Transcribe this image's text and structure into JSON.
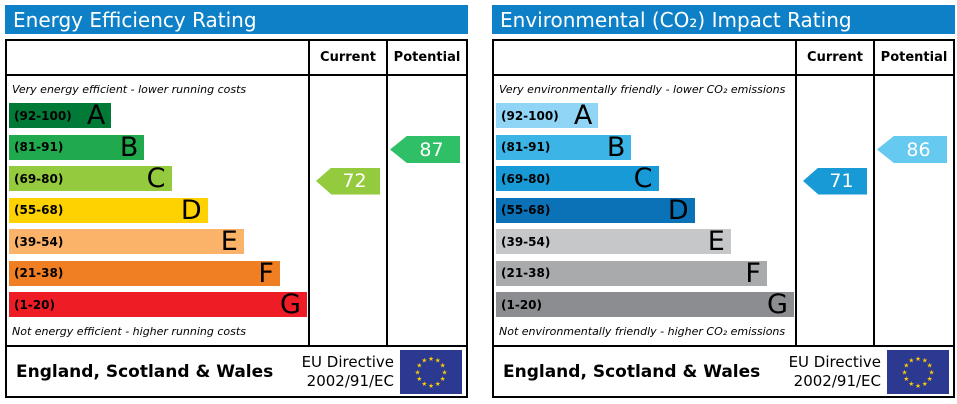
{
  "colors": {
    "header_bg": "#0d80c7",
    "flag_bg": "#2b3990",
    "star": "#ffcc00",
    "border": "#000000"
  },
  "chart_data": [
    {
      "type": "bar",
      "title": "Energy Efficiency Rating",
      "categories": [
        "A",
        "B",
        "C",
        "D",
        "E",
        "F",
        "G"
      ],
      "bands": [
        {
          "letter": "A",
          "range": "(92-100)",
          "color": "#017a37",
          "width_pct": 34
        },
        {
          "letter": "B",
          "range": "(81-91)",
          "color": "#21a94e",
          "width_pct": 45
        },
        {
          "letter": "C",
          "range": "(69-80)",
          "color": "#94ca3d",
          "width_pct": 54
        },
        {
          "letter": "D",
          "range": "(55-68)",
          "color": "#fed100",
          "width_pct": 66
        },
        {
          "letter": "E",
          "range": "(39-54)",
          "color": "#fbb269",
          "width_pct": 78
        },
        {
          "letter": "F",
          "range": "(21-38)",
          "color": "#f07e23",
          "width_pct": 90
        },
        {
          "letter": "G",
          "range": "(1-20)",
          "color": "#ee1c25",
          "width_pct": 99
        }
      ],
      "current": {
        "label": "Current",
        "value": 72,
        "band": "C",
        "color": "#94ca3d"
      },
      "potential": {
        "label": "Potential",
        "value": 87,
        "band": "B",
        "color": "#2fbf66"
      }
    },
    {
      "type": "bar",
      "title": "Environmental (CO₂) Impact Rating",
      "categories": [
        "A",
        "B",
        "C",
        "D",
        "E",
        "F",
        "G"
      ],
      "bands": [
        {
          "letter": "A",
          "range": "(92-100)",
          "color": "#90d5f6",
          "width_pct": 34
        },
        {
          "letter": "B",
          "range": "(81-91)",
          "color": "#3cb4e5",
          "width_pct": 45
        },
        {
          "letter": "C",
          "range": "(69-80)",
          "color": "#189ad6",
          "width_pct": 54
        },
        {
          "letter": "D",
          "range": "(55-68)",
          "color": "#0b72b8",
          "width_pct": 66
        },
        {
          "letter": "E",
          "range": "(39-54)",
          "color": "#c6c7c9",
          "width_pct": 78
        },
        {
          "letter": "F",
          "range": "(21-38)",
          "color": "#a8aaac",
          "width_pct": 90
        },
        {
          "letter": "G",
          "range": "(1-20)",
          "color": "#8b8d90",
          "width_pct": 99
        }
      ],
      "current": {
        "label": "Current",
        "value": 71,
        "band": "C",
        "color": "#189ad6"
      },
      "potential": {
        "label": "Potential",
        "value": 86,
        "band": "B",
        "color": "#66c9ef"
      }
    }
  ],
  "panels": [
    {
      "title": "Energy Efficiency Rating",
      "current_label": "Current",
      "potential_label": "Potential",
      "caption_top": "Very energy efficient - lower running costs",
      "caption_bottom": "Not energy efficient - higher running costs",
      "footer": {
        "region": "England, Scotland & Wales",
        "directive_line1": "EU Directive",
        "directive_line2": "2002/91/EC"
      }
    },
    {
      "title": "Environmental (CO₂) Impact Rating",
      "current_label": "Current",
      "potential_label": "Potential",
      "caption_top": "Very environmentally friendly - lower CO₂ emissions",
      "caption_bottom": "Not environmentally friendly - higher CO₂ emissions",
      "footer": {
        "region": "England, Scotland & Wales",
        "directive_line1": "EU Directive",
        "directive_line2": "2002/91/EC"
      }
    }
  ]
}
